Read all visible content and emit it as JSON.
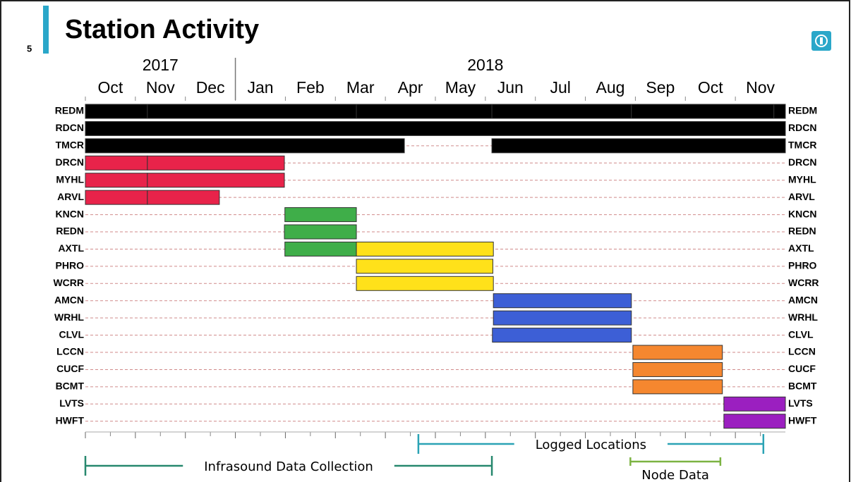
{
  "slide_number": "5",
  "chart_data": {
    "type": "gantt",
    "title": "Station Activity",
    "xlim": [
      0,
      14
    ],
    "xticks": [
      {
        "value": 0.5,
        "label": "Oct"
      },
      {
        "value": 1.5,
        "label": "Nov"
      },
      {
        "value": 2.5,
        "label": "Dec"
      },
      {
        "value": 3.5,
        "label": "Jan"
      },
      {
        "value": 4.5,
        "label": "Feb"
      },
      {
        "value": 5.5,
        "label": "Mar"
      },
      {
        "value": 6.5,
        "label": "Apr"
      },
      {
        "value": 7.5,
        "label": "May"
      },
      {
        "value": 8.5,
        "label": "Jun"
      },
      {
        "value": 9.5,
        "label": "Jul"
      },
      {
        "value": 10.5,
        "label": "Aug"
      },
      {
        "value": 11.5,
        "label": "Sep"
      },
      {
        "value": 12.5,
        "label": "Oct"
      },
      {
        "value": 13.5,
        "label": "Nov"
      }
    ],
    "year_labels": [
      {
        "value": 1.5,
        "label": "2017"
      },
      {
        "value": 8,
        "label": "2018"
      }
    ],
    "year_boundaries": [
      3
    ],
    "grid": true,
    "rows": [
      {
        "name": "REDM",
        "segments": [
          {
            "start": 0,
            "end": 1.24,
            "color": "#000000"
          },
          {
            "start": 1.24,
            "end": 5.42,
            "color": "#000000"
          },
          {
            "start": 5.42,
            "end": 8.13,
            "color": "#000000"
          },
          {
            "start": 8.13,
            "end": 10.92,
            "color": "#000000"
          },
          {
            "start": 10.92,
            "end": 13.77,
            "color": "#000000"
          },
          {
            "start": 13.77,
            "end": 14,
            "color": "#000000"
          }
        ]
      },
      {
        "name": "RDCN",
        "segments": [
          {
            "start": 0,
            "end": 14,
            "color": "#000000"
          }
        ]
      },
      {
        "name": "TMCR",
        "segments": [
          {
            "start": 0,
            "end": 6.38,
            "color": "#000000"
          },
          {
            "start": 8.13,
            "end": 14,
            "color": "#000000"
          }
        ]
      },
      {
        "name": "DRCN",
        "segments": [
          {
            "start": 0,
            "end": 1.24,
            "color": "#e8234a"
          },
          {
            "start": 1.24,
            "end": 3.98,
            "color": "#e8234a"
          }
        ]
      },
      {
        "name": "MYHL",
        "segments": [
          {
            "start": 0,
            "end": 1.24,
            "color": "#e8234a"
          },
          {
            "start": 1.24,
            "end": 3.98,
            "color": "#e8234a"
          }
        ]
      },
      {
        "name": "ARVL",
        "segments": [
          {
            "start": 0,
            "end": 1.24,
            "color": "#e8234a"
          },
          {
            "start": 1.24,
            "end": 2.68,
            "color": "#e8234a"
          }
        ]
      },
      {
        "name": "KNCN",
        "segments": [
          {
            "start": 3.99,
            "end": 5.42,
            "color": "#3fae49"
          }
        ]
      },
      {
        "name": "REDN",
        "segments": [
          {
            "start": 3.98,
            "end": 5.42,
            "color": "#3fae49"
          }
        ]
      },
      {
        "name": "AXTL",
        "segments": [
          {
            "start": 3.99,
            "end": 5.42,
            "color": "#3fae49"
          },
          {
            "start": 5.42,
            "end": 8.16,
            "color": "#ffe11a"
          }
        ]
      },
      {
        "name": "PHRO",
        "segments": [
          {
            "start": 5.42,
            "end": 8.15,
            "color": "#ffe11a"
          }
        ]
      },
      {
        "name": "WCRR",
        "segments": [
          {
            "start": 5.42,
            "end": 8.16,
            "color": "#ffe11a"
          }
        ]
      },
      {
        "name": "AMCN",
        "segments": [
          {
            "start": 8.16,
            "end": 10.92,
            "color": "#3d5fd6"
          }
        ]
      },
      {
        "name": "WRHL",
        "segments": [
          {
            "start": 8.16,
            "end": 10.92,
            "color": "#3d5fd6"
          }
        ]
      },
      {
        "name": "CLVL",
        "segments": [
          {
            "start": 8.14,
            "end": 10.92,
            "color": "#3d5fd6"
          }
        ]
      },
      {
        "name": "LCCN",
        "segments": [
          {
            "start": 10.95,
            "end": 12.74,
            "color": "#f5872f"
          }
        ]
      },
      {
        "name": "CUCF",
        "segments": [
          {
            "start": 10.95,
            "end": 12.74,
            "color": "#f5872f"
          }
        ]
      },
      {
        "name": "BCMT",
        "segments": [
          {
            "start": 10.95,
            "end": 12.74,
            "color": "#f5872f"
          }
        ]
      },
      {
        "name": "LVTS",
        "segments": [
          {
            "start": 12.77,
            "end": 14,
            "color": "#9b1fc0"
          }
        ]
      },
      {
        "name": "HWFT",
        "segments": [
          {
            "start": 12.77,
            "end": 14,
            "color": "#9b1fc0"
          }
        ]
      }
    ],
    "annotations": [
      {
        "label": "Logged Locations",
        "start": 6.66,
        "end": 13.56,
        "color": "#2ba3b5"
      },
      {
        "label": "Infrasound Data Collection",
        "start": 0,
        "end": 8.13,
        "color": "#27886e"
      },
      {
        "label": "Node Data",
        "start": 10.9,
        "end": 12.7,
        "color": "#7cb342"
      }
    ]
  }
}
